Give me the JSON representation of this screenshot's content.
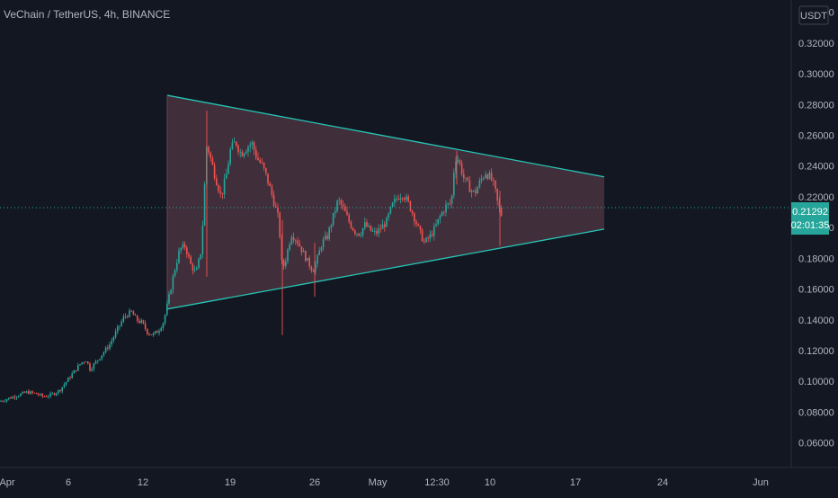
{
  "header": {
    "symbol": "VeChain / TetherUS",
    "interval": "4h",
    "exchange": "BINANCE"
  },
  "currency_label": "USDT",
  "price_badge": {
    "price": "0.21292",
    "countdown": "02:01:35"
  },
  "colors": {
    "background": "#131722",
    "up": "#26a69a",
    "down": "#ef5350",
    "triangle_line": "#26c6b5",
    "triangle_fill": "#7a4b5a",
    "axis_text": "#b2b5be",
    "badge": "#26a69a"
  },
  "chart_data": {
    "type": "candlestick",
    "y_ticks": [
      "0.06000",
      "0.08000",
      "0.10000",
      "0.12000",
      "0.14000",
      "0.16000",
      "0.18000",
      "0.20000",
      "0.22000",
      "0.24000",
      "0.26000",
      "0.28000",
      "0.30000",
      "0.32000",
      "0.34000"
    ],
    "x_ticks": [
      "Apr",
      "6",
      "12",
      "19",
      "26",
      "May",
      "12:30",
      "10",
      "17",
      "24",
      "Jun"
    ],
    "ylim": [
      0.044,
      0.348
    ],
    "last_price": 0.21292,
    "path_points": [
      [
        0,
        0.087
      ],
      [
        10,
        0.089
      ],
      [
        20,
        0.091
      ],
      [
        30,
        0.093
      ],
      [
        40,
        0.092
      ],
      [
        48,
        0.09
      ],
      [
        56,
        0.091
      ],
      [
        66,
        0.094
      ],
      [
        74,
        0.1
      ],
      [
        82,
        0.106
      ],
      [
        90,
        0.112
      ],
      [
        96,
        0.114
      ],
      [
        100,
        0.108
      ],
      [
        106,
        0.112
      ],
      [
        114,
        0.118
      ],
      [
        122,
        0.124
      ],
      [
        130,
        0.133
      ],
      [
        138,
        0.142
      ],
      [
        146,
        0.145
      ],
      [
        152,
        0.14
      ],
      [
        158,
        0.138
      ],
      [
        164,
        0.132
      ],
      [
        170,
        0.13
      ],
      [
        176,
        0.133
      ],
      [
        182,
        0.139
      ],
      [
        188,
        0.155
      ],
      [
        194,
        0.172
      ],
      [
        200,
        0.186
      ],
      [
        206,
        0.188
      ],
      [
        212,
        0.176
      ],
      [
        218,
        0.17
      ],
      [
        224,
        0.186
      ],
      [
        230,
        0.255
      ],
      [
        234,
        0.245
      ],
      [
        240,
        0.232
      ],
      [
        246,
        0.22
      ],
      [
        252,
        0.235
      ],
      [
        256,
        0.25
      ],
      [
        262,
        0.256
      ],
      [
        268,
        0.248
      ],
      [
        274,
        0.252
      ],
      [
        280,
        0.255
      ],
      [
        286,
        0.245
      ],
      [
        292,
        0.24
      ],
      [
        298,
        0.23
      ],
      [
        304,
        0.218
      ],
      [
        310,
        0.205
      ],
      [
        314,
        0.172
      ],
      [
        318,
        0.18
      ],
      [
        324,
        0.196
      ],
      [
        330,
        0.192
      ],
      [
        336,
        0.185
      ],
      [
        342,
        0.178
      ],
      [
        348,
        0.172
      ],
      [
        352,
        0.178
      ],
      [
        358,
        0.19
      ],
      [
        364,
        0.194
      ],
      [
        370,
        0.206
      ],
      [
        376,
        0.218
      ],
      [
        382,
        0.212
      ],
      [
        388,
        0.204
      ],
      [
        394,
        0.198
      ],
      [
        400,
        0.196
      ],
      [
        406,
        0.202
      ],
      [
        412,
        0.198
      ],
      [
        418,
        0.196
      ],
      [
        424,
        0.2
      ],
      [
        430,
        0.204
      ],
      [
        436,
        0.214
      ],
      [
        442,
        0.22
      ],
      [
        448,
        0.222
      ],
      [
        454,
        0.216
      ],
      [
        460,
        0.208
      ],
      [
        466,
        0.198
      ],
      [
        472,
        0.19
      ],
      [
        478,
        0.194
      ],
      [
        484,
        0.2
      ],
      [
        490,
        0.208
      ],
      [
        496,
        0.214
      ],
      [
        502,
        0.216
      ],
      [
        506,
        0.246
      ],
      [
        510,
        0.244
      ],
      [
        516,
        0.232
      ],
      [
        522,
        0.226
      ],
      [
        528,
        0.222
      ],
      [
        534,
        0.23
      ],
      [
        540,
        0.236
      ],
      [
        546,
        0.232
      ],
      [
        550,
        0.226
      ],
      [
        554,
        0.214
      ],
      [
        558,
        0.208
      ]
    ],
    "triangle": {
      "left_top": [
        186,
        0.286
      ],
      "left_bottom": [
        186,
        0.147
      ],
      "right_top": [
        672,
        0.233
      ],
      "right_bottom": [
        672,
        0.199
      ]
    }
  }
}
